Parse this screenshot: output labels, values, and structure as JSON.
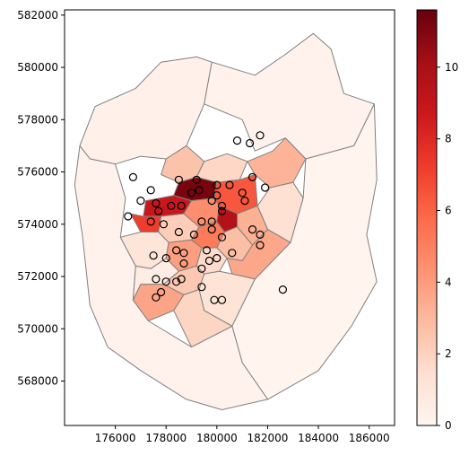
{
  "chart_data": {
    "type": "choropleth",
    "title": "",
    "xlabel": "",
    "ylabel": "",
    "xlim": [
      174000,
      187000
    ],
    "ylim": [
      566300,
      582200
    ],
    "x_ticks": [
      176000,
      178000,
      180000,
      182000,
      184000,
      186000
    ],
    "x_tick_labels": [
      "176000",
      "178000",
      "180000",
      "182000",
      "184000",
      "186000"
    ],
    "y_ticks": [
      568000,
      570000,
      572000,
      574000,
      576000,
      578000,
      580000,
      582000
    ],
    "y_tick_labels": [
      "568000",
      "570000",
      "572000",
      "574000",
      "576000",
      "578000",
      "580000",
      "582000"
    ],
    "colorbar": {
      "cmap": "Reds",
      "vmin": 0,
      "vmax": 11.6,
      "ticks": [
        0,
        2,
        4,
        6,
        8,
        10
      ],
      "tick_labels": [
        "0",
        "2",
        "4",
        "6",
        "8",
        "10"
      ],
      "colors": [
        "#fff5f0",
        "#fee0d2",
        "#fcbba1",
        "#fc9272",
        "#fb6a4a",
        "#ef3b2c",
        "#cb181d",
        "#a50f15",
        "#67000d"
      ]
    },
    "polygon_style": {
      "edge_color": "#808080"
    },
    "points_style": {
      "marker": "open-circle",
      "edge_color": "#000000"
    },
    "regions": [
      {
        "value": 0.3,
        "coords": [
          [
            174600,
            577000
          ],
          [
            175200,
            578500
          ],
          [
            176800,
            579200
          ],
          [
            177800,
            580200
          ],
          [
            179200,
            580400
          ],
          [
            179800,
            580200
          ],
          [
            179500,
            578600
          ],
          [
            178800,
            577000
          ],
          [
            178000,
            576500
          ],
          [
            177000,
            576600
          ],
          [
            176000,
            576300
          ],
          [
            175000,
            576500
          ]
        ]
      },
      {
        "value": 0.2,
        "coords": [
          [
            179800,
            580200
          ],
          [
            181500,
            579700
          ],
          [
            182700,
            580500
          ],
          [
            183800,
            581300
          ],
          [
            184500,
            580700
          ],
          [
            185000,
            579000
          ],
          [
            186200,
            578600
          ],
          [
            185400,
            577000
          ],
          [
            183500,
            576500
          ],
          [
            182700,
            577300
          ],
          [
            181500,
            576800
          ],
          [
            181000,
            578000
          ],
          [
            179500,
            578600
          ]
        ]
      },
      {
        "value": 0.1,
        "coords": [
          [
            183500,
            576500
          ],
          [
            185400,
            577000
          ],
          [
            186200,
            578600
          ],
          [
            186300,
            575700
          ],
          [
            185900,
            573600
          ],
          [
            186300,
            571800
          ],
          [
            185300,
            570100
          ],
          [
            184000,
            568400
          ],
          [
            182000,
            567300
          ],
          [
            181000,
            568700
          ],
          [
            180600,
            570100
          ],
          [
            181500,
            571900
          ],
          [
            182900,
            573300
          ],
          [
            183400,
            575000
          ]
        ]
      },
      {
        "value": 0.2,
        "coords": [
          [
            174600,
            577000
          ],
          [
            175000,
            576500
          ],
          [
            176000,
            576300
          ],
          [
            176400,
            575000
          ],
          [
            176200,
            573500
          ],
          [
            176800,
            572400
          ],
          [
            176700,
            571100
          ],
          [
            177300,
            570300
          ],
          [
            179000,
            569300
          ],
          [
            180600,
            570100
          ],
          [
            181000,
            568700
          ],
          [
            182000,
            567300
          ],
          [
            180200,
            566900
          ],
          [
            178800,
            567300
          ],
          [
            177000,
            568400
          ],
          [
            175700,
            569300
          ],
          [
            175000,
            570900
          ],
          [
            174700,
            573600
          ],
          [
            174400,
            575500
          ]
        ]
      },
      {
        "value": 2.6,
        "coords": [
          [
            178000,
            576500
          ],
          [
            178800,
            577000
          ],
          [
            179500,
            576400
          ],
          [
            179200,
            575800
          ],
          [
            178500,
            575600
          ],
          [
            177800,
            575900
          ]
        ]
      },
      {
        "value": 1.8,
        "coords": [
          [
            179500,
            576400
          ],
          [
            180400,
            576700
          ],
          [
            181200,
            576400
          ],
          [
            180900,
            575700
          ],
          [
            180000,
            575600
          ],
          [
            179200,
            575800
          ]
        ]
      },
      {
        "value": 3.2,
        "coords": [
          [
            181200,
            576400
          ],
          [
            182200,
            576800
          ],
          [
            182700,
            577300
          ],
          [
            183500,
            576500
          ],
          [
            183000,
            575600
          ],
          [
            182100,
            575400
          ],
          [
            181500,
            575900
          ]
        ]
      },
      {
        "value": 1.4,
        "coords": [
          [
            183000,
            575600
          ],
          [
            183400,
            575000
          ],
          [
            182900,
            573300
          ],
          [
            182000,
            573800
          ],
          [
            181600,
            574700
          ],
          [
            182100,
            575400
          ]
        ]
      },
      {
        "value": 11.2,
        "coords": [
          [
            178500,
            575600
          ],
          [
            179200,
            575800
          ],
          [
            180000,
            575600
          ],
          [
            179900,
            575000
          ],
          [
            179000,
            574900
          ],
          [
            178300,
            575100
          ]
        ]
      },
      {
        "value": 8.8,
        "coords": [
          [
            177200,
            574900
          ],
          [
            178300,
            575100
          ],
          [
            179000,
            574900
          ],
          [
            178700,
            574400
          ],
          [
            177800,
            574300
          ],
          [
            177100,
            574300
          ]
        ]
      },
      {
        "value": 6.4,
        "coords": [
          [
            180000,
            575600
          ],
          [
            180900,
            575700
          ],
          [
            181500,
            575900
          ],
          [
            181600,
            574700
          ],
          [
            180800,
            574400
          ],
          [
            180100,
            574700
          ],
          [
            179900,
            575000
          ]
        ]
      },
      {
        "value": 4.5,
        "coords": [
          [
            179000,
            574900
          ],
          [
            179900,
            575000
          ],
          [
            180100,
            574700
          ],
          [
            180000,
            574100
          ],
          [
            179300,
            573900
          ],
          [
            178700,
            574400
          ]
        ]
      },
      {
        "value": 9.6,
        "coords": [
          [
            180100,
            574700
          ],
          [
            180800,
            574400
          ],
          [
            180800,
            573900
          ],
          [
            180300,
            573700
          ],
          [
            180000,
            574100
          ]
        ]
      },
      {
        "value": 3.3,
        "coords": [
          [
            180800,
            574400
          ],
          [
            181600,
            574700
          ],
          [
            182000,
            573800
          ],
          [
            181400,
            573200
          ],
          [
            180800,
            573900
          ]
        ]
      },
      {
        "value": 7.2,
        "coords": [
          [
            176600,
            574400
          ],
          [
            177100,
            574300
          ],
          [
            177800,
            574300
          ],
          [
            177700,
            573700
          ],
          [
            177000,
            573700
          ]
        ]
      },
      {
        "value": 2.2,
        "coords": [
          [
            177800,
            574300
          ],
          [
            178700,
            574400
          ],
          [
            179300,
            573900
          ],
          [
            179000,
            573400
          ],
          [
            178100,
            573300
          ],
          [
            177700,
            573700
          ]
        ]
      },
      {
        "value": 5.2,
        "coords": [
          [
            179300,
            573900
          ],
          [
            180000,
            574100
          ],
          [
            180300,
            573700
          ],
          [
            180000,
            573100
          ],
          [
            179400,
            573100
          ],
          [
            179000,
            573400
          ]
        ]
      },
      {
        "value": 2.8,
        "coords": [
          [
            180300,
            573700
          ],
          [
            180800,
            573900
          ],
          [
            181400,
            573200
          ],
          [
            181000,
            572600
          ],
          [
            180400,
            572700
          ],
          [
            180000,
            573100
          ]
        ]
      },
      {
        "value": 1.1,
        "coords": [
          [
            177000,
            573700
          ],
          [
            177700,
            573700
          ],
          [
            178100,
            573300
          ],
          [
            178000,
            572700
          ],
          [
            177400,
            572300
          ],
          [
            176800,
            572400
          ],
          [
            176200,
            573500
          ]
        ]
      },
      {
        "value": 3.9,
        "coords": [
          [
            178100,
            573300
          ],
          [
            179000,
            573400
          ],
          [
            179400,
            573100
          ],
          [
            179200,
            572400
          ],
          [
            178500,
            572200
          ],
          [
            178000,
            572700
          ]
        ]
      },
      {
        "value": 1.6,
        "coords": [
          [
            179400,
            573100
          ],
          [
            180000,
            573100
          ],
          [
            180400,
            572700
          ],
          [
            180100,
            572200
          ],
          [
            179500,
            572100
          ],
          [
            179200,
            572400
          ]
        ]
      },
      {
        "value": 3.6,
        "coords": [
          [
            180400,
            572700
          ],
          [
            181000,
            572600
          ],
          [
            181400,
            573200
          ],
          [
            182000,
            573800
          ],
          [
            182900,
            573300
          ],
          [
            181500,
            571900
          ],
          [
            180600,
            572100
          ]
        ]
      },
      {
        "value": 0.6,
        "coords": [
          [
            176800,
            572400
          ],
          [
            177400,
            572300
          ],
          [
            178000,
            572700
          ],
          [
            178500,
            572200
          ],
          [
            177900,
            571700
          ],
          [
            177000,
            571700
          ],
          [
            176700,
            571100
          ]
        ]
      },
      {
        "value": 2.4,
        "coords": [
          [
            178500,
            572200
          ],
          [
            179200,
            572400
          ],
          [
            179500,
            572100
          ],
          [
            179300,
            571500
          ],
          [
            178700,
            571300
          ],
          [
            177900,
            571700
          ]
        ]
      },
      {
        "value": 3.7,
        "coords": [
          [
            177000,
            571700
          ],
          [
            177900,
            571700
          ],
          [
            178700,
            571300
          ],
          [
            178300,
            570700
          ],
          [
            177300,
            570300
          ],
          [
            176700,
            571100
          ]
        ]
      },
      {
        "value": 1.2,
        "coords": [
          [
            179500,
            572100
          ],
          [
            180100,
            572200
          ],
          [
            180600,
            572100
          ],
          [
            181500,
            571900
          ],
          [
            180600,
            570100
          ],
          [
            179500,
            570700
          ],
          [
            179300,
            571500
          ]
        ]
      },
      {
        "value": 1.9,
        "coords": [
          [
            178700,
            571300
          ],
          [
            179300,
            571500
          ],
          [
            179500,
            570700
          ],
          [
            180600,
            570100
          ],
          [
            179000,
            569300
          ],
          [
            178300,
            570700
          ]
        ]
      }
    ],
    "points": [
      [
        176700,
        575800
      ],
      [
        177400,
        575300
      ],
      [
        178500,
        575700
      ],
      [
        179200,
        575700
      ],
      [
        179300,
        575300
      ],
      [
        180000,
        575500
      ],
      [
        180500,
        575500
      ],
      [
        181400,
        575800
      ],
      [
        181900,
        575400
      ],
      [
        181700,
        577400
      ],
      [
        181300,
        577100
      ],
      [
        180800,
        577200
      ],
      [
        177000,
        574900
      ],
      [
        177600,
        574800
      ],
      [
        178200,
        574700
      ],
      [
        178600,
        574700
      ],
      [
        179800,
        574900
      ],
      [
        180200,
        574700
      ],
      [
        181100,
        574900
      ],
      [
        181000,
        575200
      ],
      [
        180000,
        575100
      ],
      [
        176500,
        574300
      ],
      [
        177400,
        574100
      ],
      [
        177700,
        574500
      ],
      [
        177900,
        574000
      ],
      [
        178500,
        573700
      ],
      [
        179100,
        573600
      ],
      [
        179400,
        574100
      ],
      [
        179800,
        574100
      ],
      [
        180200,
        574500
      ],
      [
        180200,
        573500
      ],
      [
        179600,
        573000
      ],
      [
        179800,
        573800
      ],
      [
        180000,
        572700
      ],
      [
        180600,
        572900
      ],
      [
        181400,
        573800
      ],
      [
        181700,
        573600
      ],
      [
        181700,
        573200
      ],
      [
        177500,
        572800
      ],
      [
        178400,
        573000
      ],
      [
        178700,
        572900
      ],
      [
        178000,
        572700
      ],
      [
        178700,
        572500
      ],
      [
        179400,
        572300
      ],
      [
        179700,
        572600
      ],
      [
        177600,
        571900
      ],
      [
        178000,
        571800
      ],
      [
        178600,
        571900
      ],
      [
        178400,
        571800
      ],
      [
        179400,
        571600
      ],
      [
        177800,
        571400
      ],
      [
        177600,
        571200
      ],
      [
        179900,
        571100
      ],
      [
        180200,
        571100
      ],
      [
        182600,
        571500
      ],
      [
        179000,
        575200
      ]
    ]
  }
}
